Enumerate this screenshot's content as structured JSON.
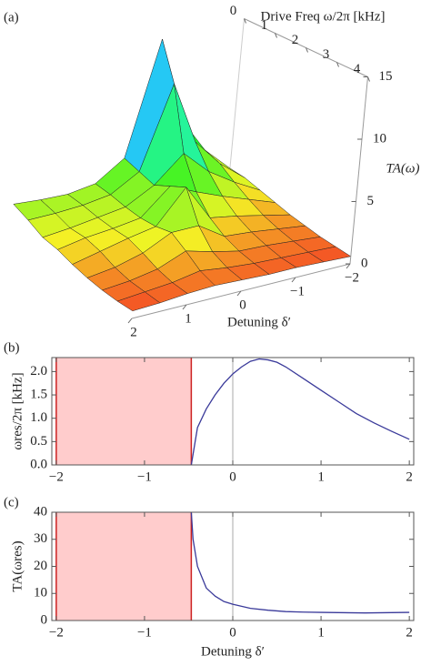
{
  "chart_data": [
    {
      "type": "surface3d",
      "panel_label": "(a)",
      "xlabel": "Detuning δ′",
      "ylabel": "Drive Freq ω/2π [kHz]",
      "zlabel": "TA(ω)",
      "x": [
        -2,
        -1.5,
        -1,
        -0.5,
        0,
        0.5,
        1,
        1.5,
        2
      ],
      "y": [
        0,
        0.5,
        1,
        1.5,
        2,
        2.5,
        3,
        3.5,
        4
      ],
      "z": [
        [
          3,
          2.8,
          2.4,
          2,
          1.6,
          1.3,
          1,
          0.8,
          0.6
        ],
        [
          5,
          4.5,
          3.6,
          2.8,
          2.1,
          1.6,
          1.2,
          0.9,
          0.7
        ],
        [
          8,
          6.8,
          5,
          3.6,
          2.6,
          1.9,
          1.4,
          1,
          0.8
        ],
        [
          15,
          12,
          7,
          4.5,
          3,
          2.1,
          1.5,
          1.1,
          0.8
        ],
        [
          6,
          5.5,
          5,
          5.5,
          6,
          3.5,
          2,
          1.3,
          0.9
        ],
        [
          4.5,
          4.2,
          3.8,
          3.5,
          3.4,
          3.5,
          2.6,
          1.6,
          1
        ],
        [
          4.2,
          3.9,
          3.5,
          3.2,
          3,
          2.4,
          1.7,
          1.2,
          0.9
        ],
        [
          4.3,
          3.8,
          3.2,
          3,
          2.5,
          1.8,
          1.3,
          1,
          0.7
        ],
        [
          4.5,
          3.8,
          3,
          2.6,
          2,
          1.5,
          1.1,
          0.8,
          0.6
        ]
      ],
      "xlim": [
        -2,
        2
      ],
      "ylim": [
        0,
        4
      ],
      "zlim": [
        0,
        15
      ],
      "xticks": [
        {
          "value": -2,
          "label": "−2"
        },
        {
          "value": -1,
          "label": "−1"
        },
        0,
        1,
        2
      ],
      "yticks": [
        0,
        1,
        2,
        3,
        4
      ],
      "zticks": [
        0,
        5,
        10,
        15
      ],
      "mesh_color": "#222222"
    },
    {
      "type": "line",
      "panel_label": "(b)",
      "ylabel": "ωres/2π [kHz]",
      "x": [
        -0.47,
        -0.4,
        -0.3,
        -0.2,
        -0.1,
        0,
        0.1,
        0.2,
        0.3,
        0.4,
        0.5,
        0.6,
        0.8,
        1,
        1.2,
        1.4,
        1.6,
        1.8,
        2
      ],
      "values": [
        0,
        0.8,
        1.2,
        1.5,
        1.75,
        1.95,
        2.1,
        2.22,
        2.27,
        2.25,
        2.2,
        2.1,
        1.85,
        1.6,
        1.35,
        1.1,
        0.9,
        0.72,
        0.55
      ],
      "color": "#3a3a9a",
      "shaded_region": {
        "x": [
          -2,
          -0.47
        ],
        "color": "#ffcccc",
        "edge_color": "#cc2222"
      },
      "xlim": [
        -2.05,
        2.05
      ],
      "ylim": [
        0,
        2.3
      ],
      "xticks": [
        {
          "value": -2,
          "label": "−2"
        },
        {
          "value": -1,
          "label": "−1"
        },
        0,
        1,
        2
      ],
      "yticks": [
        {
          "value": 0,
          "label": "0.0"
        },
        {
          "value": 0.5,
          "label": "0.5"
        },
        {
          "value": 1,
          "label": "1.0"
        },
        {
          "value": 1.5,
          "label": "1.5"
        },
        {
          "value": 2,
          "label": "2.0"
        }
      ]
    },
    {
      "type": "line",
      "panel_label": "(c)",
      "ylabel": "TA(ωres)",
      "xlabel": "Detuning δ′",
      "x": [
        -0.47,
        -0.45,
        -0.4,
        -0.3,
        -0.2,
        -0.1,
        0,
        0.2,
        0.4,
        0.6,
        0.8,
        1,
        1.5,
        2
      ],
      "values": [
        40,
        30,
        20,
        12,
        9,
        7,
        6,
        4.5,
        3.8,
        3.3,
        3.1,
        3,
        2.8,
        3
      ],
      "color": "#3a3a9a",
      "shaded_region": {
        "x": [
          -2,
          -0.47
        ],
        "color": "#ffcccc",
        "edge_color": "#cc2222"
      },
      "xlim": [
        -2.05,
        2.05
      ],
      "ylim": [
        0,
        40
      ],
      "xticks": [
        {
          "value": -2,
          "label": "−2"
        },
        {
          "value": -1,
          "label": "−1"
        },
        0,
        1,
        2
      ],
      "yticks": [
        0,
        10,
        20,
        30,
        40
      ]
    }
  ]
}
